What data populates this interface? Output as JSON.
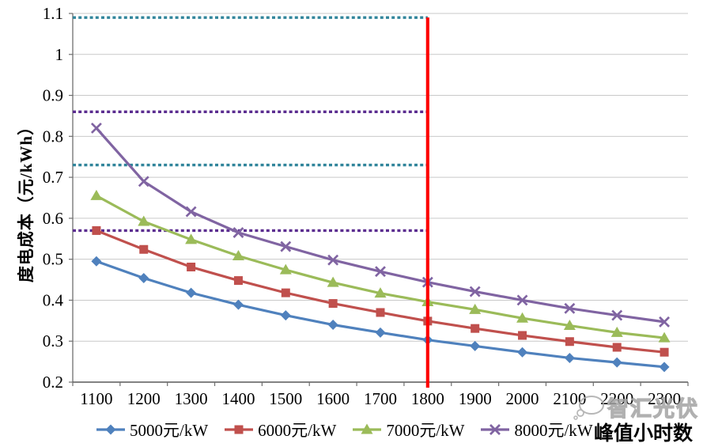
{
  "chart_data": {
    "type": "line",
    "title": "",
    "xlabel": "峰值小时数",
    "ylabel": "度电成本（元/kWh）",
    "x": [
      1100,
      1200,
      1300,
      1400,
      1500,
      1600,
      1700,
      1800,
      1900,
      2000,
      2100,
      2200,
      2300
    ],
    "xlim": [
      1100,
      2300
    ],
    "ylim": [
      0.2,
      1.1
    ],
    "ytick_step": 0.1,
    "grid": "horizontal",
    "legend_position": "bottom",
    "series": [
      {
        "name": "5000元/kW",
        "color": "#4F81BD",
        "marker": "diamond",
        "values": [
          0.495,
          0.454,
          0.418,
          0.389,
          0.363,
          0.34,
          0.321,
          0.303,
          0.288,
          0.273,
          0.259,
          0.248,
          0.237
        ]
      },
      {
        "name": "6000元/kW",
        "color": "#C0504D",
        "marker": "square",
        "values": [
          0.57,
          0.524,
          0.481,
          0.448,
          0.418,
          0.392,
          0.37,
          0.349,
          0.331,
          0.314,
          0.299,
          0.285,
          0.273
        ]
      },
      {
        "name": "7000元/kW",
        "color": "#9BBB59",
        "marker": "triangle",
        "values": [
          0.655,
          0.592,
          0.548,
          0.508,
          0.474,
          0.443,
          0.417,
          0.396,
          0.377,
          0.356,
          0.338,
          0.321,
          0.308
        ]
      },
      {
        "name": "8000元/kW",
        "color": "#8064A2",
        "marker": "x",
        "values": [
          0.82,
          0.69,
          0.616,
          0.565,
          0.531,
          0.498,
          0.47,
          0.444,
          0.421,
          0.4,
          0.38,
          0.363,
          0.347
        ]
      }
    ],
    "reference_lines": [
      {
        "value": 1.09,
        "color": "#31859B",
        "style": "dotted"
      },
      {
        "value": 0.86,
        "color": "#5B2D90",
        "style": "dotted"
      },
      {
        "value": 0.73,
        "color": "#31859B",
        "style": "dotted"
      },
      {
        "value": 0.57,
        "color": "#5B2D90",
        "style": "dotted"
      }
    ],
    "vertical_line": {
      "x": 1800,
      "color": "#FE0000"
    }
  },
  "watermark": {
    "text": "智汇光伏"
  }
}
